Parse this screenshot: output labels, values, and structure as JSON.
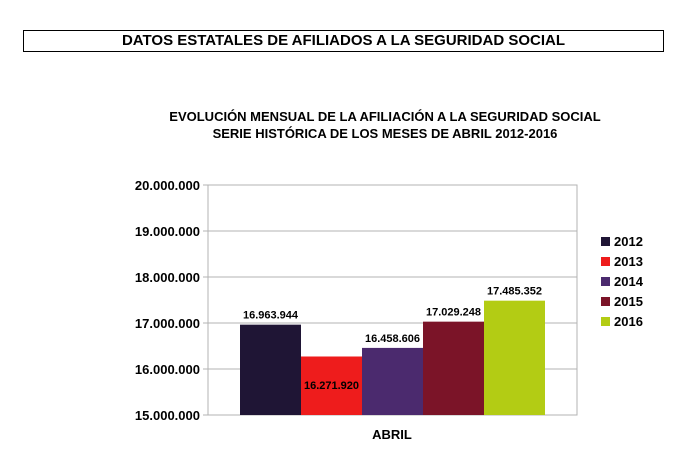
{
  "header": {
    "banner": "DATOS ESTATALES DE  AFILIADOS A LA SEGURIDAD SOCIAL"
  },
  "chart_data": {
    "type": "bar",
    "title": "EVOLUCIÓN MENSUAL DE LA  AFILIACIÓN A LA SEGURIDAD SOCIAL",
    "subtitle": "SERIE HISTÓRICA DE LOS MESES DE ABRIL 2012-2016",
    "categories": [
      "ABRIL"
    ],
    "series": [
      {
        "name": "2012",
        "values": [
          16963944
        ],
        "label": "16.963.944",
        "color": "#1f1535"
      },
      {
        "name": "2013",
        "values": [
          16271920
        ],
        "label": "16.271.920",
        "color": "#ee1c1c"
      },
      {
        "name": "2014",
        "values": [
          16458606
        ],
        "label": "16.458.606",
        "color": "#4b2a6e"
      },
      {
        "name": "2015",
        "values": [
          17029248
        ],
        "label": "17.029.248",
        "color": "#7b1428"
      },
      {
        "name": "2016",
        "values": [
          17485352
        ],
        "label": "17.485.352",
        "color": "#b3cc14"
      }
    ],
    "yticks": [
      "15.000.000",
      "16.000.000",
      "17.000.000",
      "18.000.000",
      "19.000.000",
      "20.000.000"
    ],
    "ylim": [
      15000000,
      20000000
    ],
    "grid": true,
    "legend": "right"
  }
}
